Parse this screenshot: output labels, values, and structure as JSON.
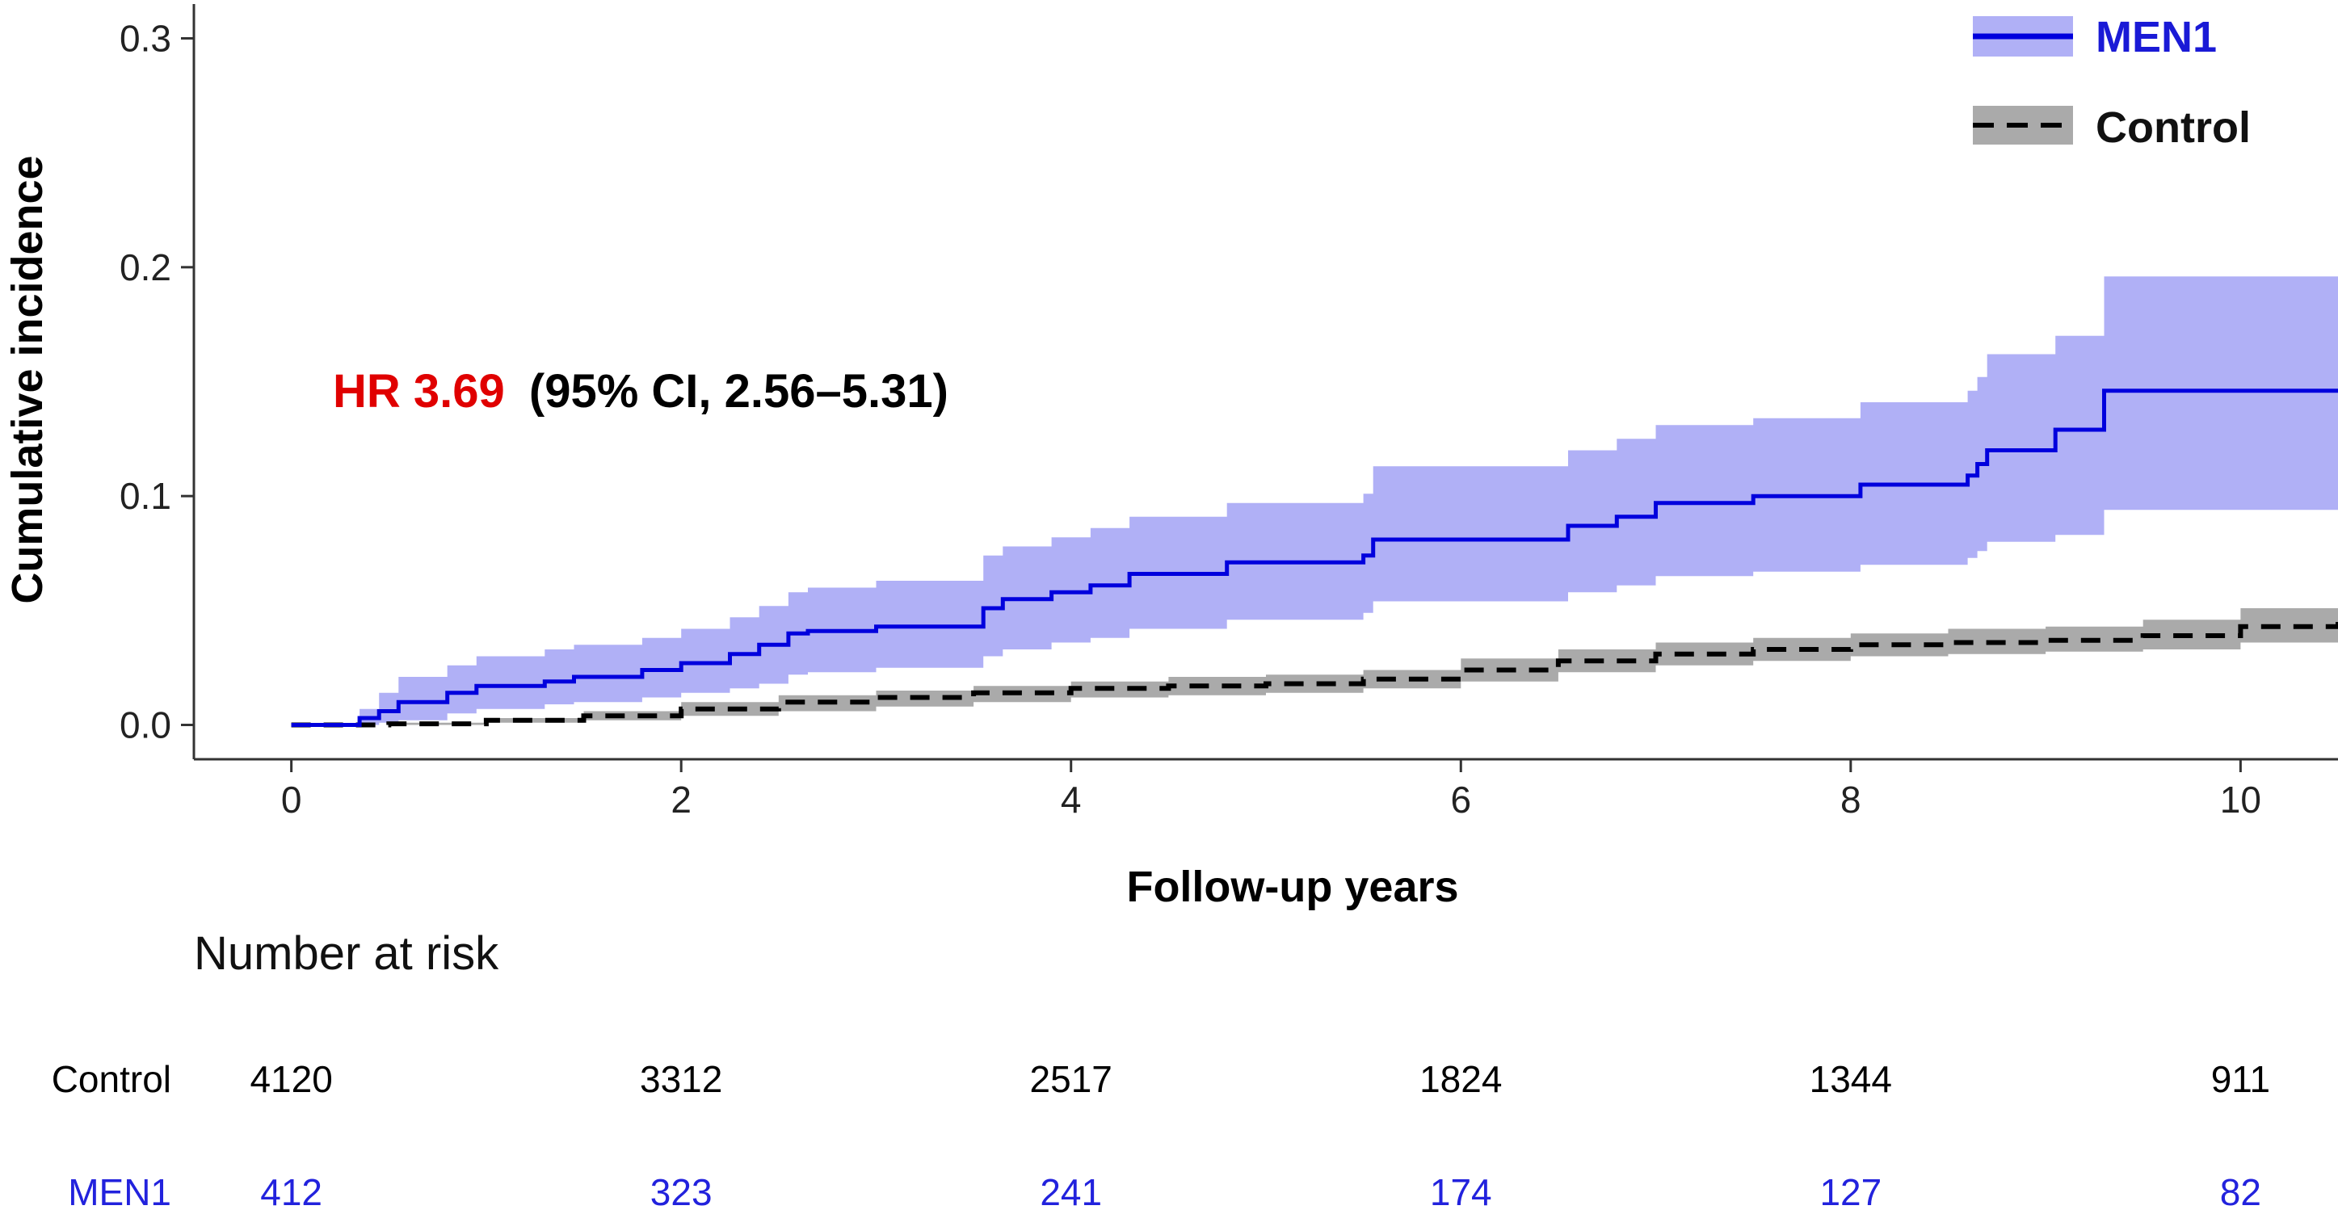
{
  "chart_data": {
    "type": "line",
    "subtype": "cumulative-incidence step curves with 95% CI bands",
    "xlabel": "Follow-up years",
    "ylabel": "Cumulative incidence",
    "xlim": [
      -0.5,
      10.5
    ],
    "ylim": [
      -0.015,
      0.315
    ],
    "x_ticks": [
      0,
      2,
      4,
      6,
      8,
      10
    ],
    "x_tick_labels": [
      "0",
      "2",
      "4",
      "6",
      "8",
      "10"
    ],
    "y_ticks": [
      0.0,
      0.1,
      0.2,
      0.3
    ],
    "y_tick_labels": [
      "0.0",
      "0.1",
      "0.2",
      "0.3"
    ],
    "grid": false,
    "legend_position": "top-right",
    "annotation": {
      "hr_text": "HR 3.69",
      "ci_text": "(95% CI, 2.56–5.31)"
    },
    "series": [
      {
        "name": "MEN1",
        "color": "#0000dd",
        "band_color": "#b0b0f6",
        "line_style": "solid",
        "x": [
          0.0,
          0.35,
          0.45,
          0.55,
          0.8,
          0.95,
          1.3,
          1.45,
          1.8,
          2.0,
          2.25,
          2.4,
          2.55,
          2.65,
          3.0,
          3.55,
          3.65,
          3.9,
          4.1,
          4.3,
          4.8,
          5.5,
          5.55,
          6.55,
          6.8,
          7.0,
          7.5,
          8.05,
          8.6,
          8.65,
          8.7,
          9.05,
          9.3,
          10.5
        ],
        "y": [
          0.0,
          0.003,
          0.006,
          0.01,
          0.014,
          0.017,
          0.019,
          0.021,
          0.024,
          0.027,
          0.031,
          0.035,
          0.04,
          0.041,
          0.043,
          0.051,
          0.055,
          0.058,
          0.061,
          0.066,
          0.071,
          0.074,
          0.081,
          0.087,
          0.091,
          0.097,
          0.1,
          0.105,
          0.109,
          0.114,
          0.12,
          0.129,
          0.146,
          0.146
        ],
        "lower": [
          0.0,
          0.0,
          0.001,
          0.002,
          0.005,
          0.007,
          0.009,
          0.01,
          0.012,
          0.014,
          0.016,
          0.018,
          0.022,
          0.023,
          0.025,
          0.03,
          0.033,
          0.036,
          0.038,
          0.042,
          0.046,
          0.049,
          0.054,
          0.058,
          0.061,
          0.065,
          0.067,
          0.07,
          0.073,
          0.076,
          0.08,
          0.083,
          0.094,
          0.094
        ],
        "upper": [
          0.0,
          0.007,
          0.014,
          0.021,
          0.026,
          0.03,
          0.033,
          0.035,
          0.038,
          0.042,
          0.047,
          0.052,
          0.058,
          0.06,
          0.063,
          0.074,
          0.078,
          0.082,
          0.086,
          0.091,
          0.097,
          0.101,
          0.113,
          0.12,
          0.125,
          0.131,
          0.134,
          0.141,
          0.146,
          0.152,
          0.162,
          0.17,
          0.196,
          0.196
        ]
      },
      {
        "name": "Control",
        "color": "#000000",
        "band_color": "#aaaaaa",
        "line_style": "dashed",
        "x": [
          0.0,
          0.5,
          1.0,
          1.5,
          2.0,
          2.5,
          3.0,
          3.5,
          4.0,
          4.5,
          5.0,
          5.5,
          6.0,
          6.5,
          7.0,
          7.5,
          8.0,
          8.5,
          9.0,
          9.5,
          10.0,
          10.5
        ],
        "y": [
          0.0,
          0.0005,
          0.002,
          0.004,
          0.007,
          0.01,
          0.012,
          0.014,
          0.016,
          0.017,
          0.018,
          0.02,
          0.024,
          0.028,
          0.031,
          0.033,
          0.035,
          0.036,
          0.037,
          0.039,
          0.043,
          0.045
        ],
        "lower": [
          0.0,
          0.0,
          0.001,
          0.002,
          0.004,
          0.006,
          0.008,
          0.01,
          0.012,
          0.013,
          0.014,
          0.016,
          0.019,
          0.023,
          0.026,
          0.028,
          0.03,
          0.031,
          0.032,
          0.033,
          0.036,
          0.037
        ],
        "upper": [
          0.0,
          0.001,
          0.003,
          0.006,
          0.01,
          0.013,
          0.015,
          0.017,
          0.019,
          0.021,
          0.022,
          0.024,
          0.029,
          0.033,
          0.036,
          0.038,
          0.04,
          0.042,
          0.043,
          0.046,
          0.051,
          0.054
        ]
      }
    ],
    "risk_table": {
      "title": "Number at risk",
      "time_points": [
        0,
        2,
        4,
        6,
        8,
        10
      ],
      "rows": [
        {
          "label": "Control",
          "color": "#000000",
          "values": [
            "4120",
            "3312",
            "2517",
            "1824",
            "1344",
            "911"
          ]
        },
        {
          "label": "MEN1",
          "color": "#2222dd",
          "values": [
            "412",
            "323",
            "241",
            "174",
            "127",
            "82"
          ]
        }
      ]
    }
  }
}
